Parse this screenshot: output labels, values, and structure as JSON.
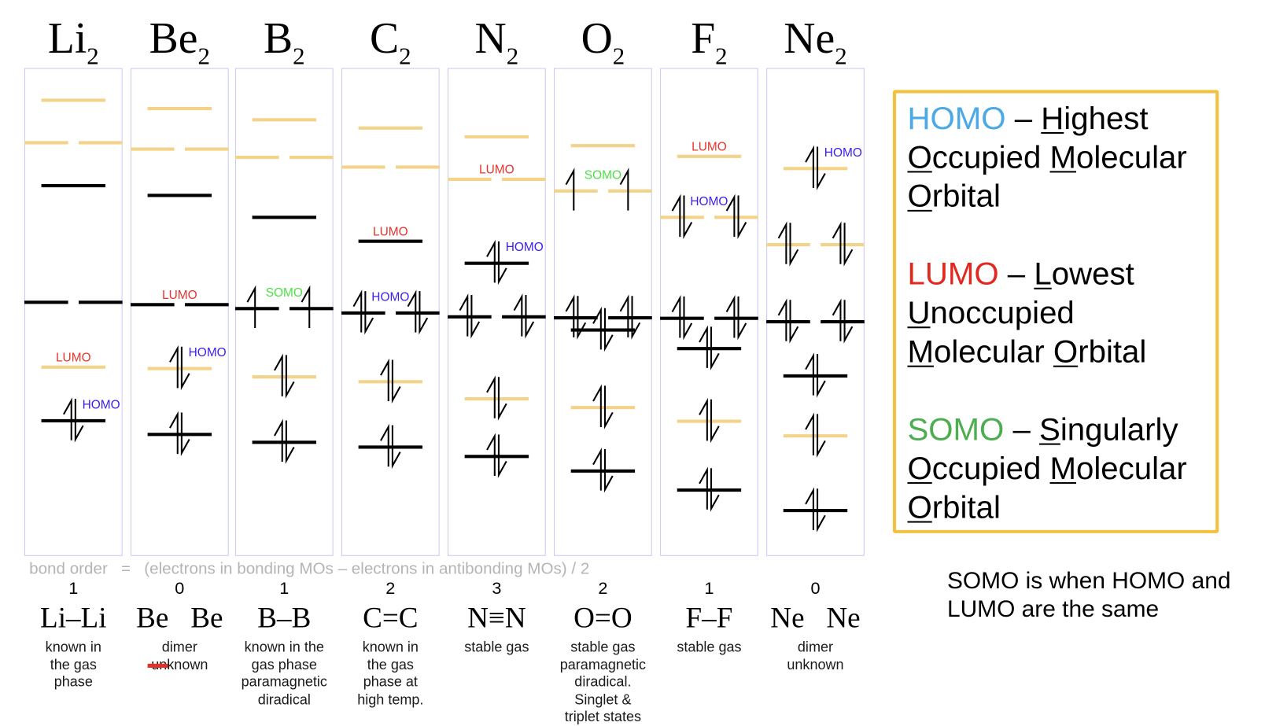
{
  "colors": {
    "bonding_line": "#000000",
    "antibonding_line": "#f3d38a",
    "homo_label": "#3a1ef2",
    "lumo_label": "#e8352b",
    "somo_label": "#4fe046",
    "box_border": "#c9c9f7",
    "legend_border": "#f2c13f",
    "formula_text": "#b4b4b4",
    "strike": "#e0322a"
  },
  "molecules": [
    {
      "symbol": "Li",
      "subscript": "2",
      "orbitals": [
        {
          "kind": "antibonding",
          "degeneracy": 1,
          "electrons": [
            0
          ],
          "relative_energy": 93.4,
          "label": null
        },
        {
          "kind": "antibonding",
          "degeneracy": 2,
          "electrons": [
            0,
            0
          ],
          "relative_energy": 84.7,
          "label": null
        },
        {
          "kind": "bonding",
          "degeneracy": 1,
          "electrons": [
            0
          ],
          "relative_energy": 75.9,
          "label": null
        },
        {
          "kind": "bonding",
          "degeneracy": 2,
          "electrons": [
            0,
            0
          ],
          "relative_energy": 52.0,
          "label": null
        },
        {
          "kind": "antibonding",
          "degeneracy": 1,
          "electrons": [
            0
          ],
          "relative_energy": 38.7,
          "label": "LUMO"
        },
        {
          "kind": "bonding",
          "degeneracy": 1,
          "electrons": [
            2
          ],
          "relative_energy": 27.7,
          "label": "HOMO"
        }
      ],
      "bond_order": "1",
      "structure": "Li–Li",
      "description": [
        {
          "text": "known in"
        },
        {
          "text": "the gas"
        },
        {
          "text": "phase"
        }
      ]
    },
    {
      "symbol": "Be",
      "subscript": "2",
      "orbitals": [
        {
          "kind": "antibonding",
          "degeneracy": 1,
          "electrons": [
            0
          ],
          "relative_energy": 91.7,
          "label": null
        },
        {
          "kind": "antibonding",
          "degeneracy": 2,
          "electrons": [
            0,
            0
          ],
          "relative_energy": 83.4,
          "label": null
        },
        {
          "kind": "bonding",
          "degeneracy": 1,
          "electrons": [
            0
          ],
          "relative_energy": 73.9,
          "label": null
        },
        {
          "kind": "bonding",
          "degeneracy": 2,
          "electrons": [
            0,
            0
          ],
          "relative_energy": 51.5,
          "label": "LUMO"
        },
        {
          "kind": "antibonding",
          "degeneracy": 1,
          "electrons": [
            2
          ],
          "relative_energy": 38.4,
          "label": "HOMO"
        },
        {
          "kind": "bonding",
          "degeneracy": 1,
          "electrons": [
            2
          ],
          "relative_energy": 24.9,
          "label": null
        }
      ],
      "bond_order": "0",
      "structure": "Be   Be",
      "description": [
        {
          "text": "dimer"
        },
        {
          "struck": "un",
          "text": "known"
        }
      ]
    },
    {
      "symbol": "B",
      "subscript": "2",
      "orbitals": [
        {
          "kind": "antibonding",
          "degeneracy": 1,
          "electrons": [
            0
          ],
          "relative_energy": 89.4,
          "label": null
        },
        {
          "kind": "antibonding",
          "degeneracy": 2,
          "electrons": [
            0,
            0
          ],
          "relative_energy": 81.7,
          "label": null
        },
        {
          "kind": "bonding",
          "degeneracy": 1,
          "electrons": [
            0
          ],
          "relative_energy": 69.4,
          "label": null
        },
        {
          "kind": "bonding",
          "degeneracy": 2,
          "electrons": [
            1,
            1
          ],
          "relative_energy": 50.7,
          "label": "SOMO"
        },
        {
          "kind": "antibonding",
          "degeneracy": 1,
          "electrons": [
            2
          ],
          "relative_energy": 36.7,
          "label": null
        },
        {
          "kind": "bonding",
          "degeneracy": 1,
          "electrons": [
            2
          ],
          "relative_energy": 23.3,
          "label": null
        }
      ],
      "bond_order": "1",
      "structure": "B–B",
      "description": [
        {
          "text": "known in the"
        },
        {
          "text": "gas phase"
        },
        {
          "text": "paramagnetic"
        },
        {
          "text": "diradical"
        }
      ]
    },
    {
      "symbol": "C",
      "subscript": "2",
      "orbitals": [
        {
          "kind": "antibonding",
          "degeneracy": 1,
          "electrons": [
            0
          ],
          "relative_energy": 87.7,
          "label": null
        },
        {
          "kind": "antibonding",
          "degeneracy": 2,
          "electrons": [
            0,
            0
          ],
          "relative_energy": 79.7,
          "label": null
        },
        {
          "kind": "bonding",
          "degeneracy": 1,
          "electrons": [
            0
          ],
          "relative_energy": 64.5,
          "label": "LUMO"
        },
        {
          "kind": "bonding",
          "degeneracy": 2,
          "electrons": [
            2,
            2
          ],
          "relative_energy": 49.8,
          "label": "HOMO"
        },
        {
          "kind": "antibonding",
          "degeneracy": 1,
          "electrons": [
            2
          ],
          "relative_energy": 35.7,
          "label": null
        },
        {
          "kind": "bonding",
          "degeneracy": 1,
          "electrons": [
            2
          ],
          "relative_energy": 22.3,
          "label": null
        }
      ],
      "bond_order": "2",
      "structure": "C=C",
      "description": [
        {
          "text": "known in"
        },
        {
          "text": "the gas"
        },
        {
          "text": "phase at"
        },
        {
          "text": "high temp."
        }
      ]
    },
    {
      "symbol": "N",
      "subscript": "2",
      "orbitals": [
        {
          "kind": "antibonding",
          "degeneracy": 1,
          "electrons": [
            0
          ],
          "relative_energy": 85.9,
          "label": null
        },
        {
          "kind": "antibonding",
          "degeneracy": 2,
          "electrons": [
            0,
            0
          ],
          "relative_energy": 77.2,
          "label": "LUMO"
        },
        {
          "kind": "bonding",
          "degeneracy": 1,
          "electrons": [
            2
          ],
          "relative_energy": 60.0,
          "label": "HOMO"
        },
        {
          "kind": "bonding",
          "degeneracy": 2,
          "electrons": [
            2,
            2
          ],
          "relative_energy": 49.0,
          "label": null
        },
        {
          "kind": "antibonding",
          "degeneracy": 1,
          "electrons": [
            2
          ],
          "relative_energy": 32.2,
          "label": null
        },
        {
          "kind": "bonding",
          "degeneracy": 1,
          "electrons": [
            2
          ],
          "relative_energy": 20.4,
          "label": null
        }
      ],
      "bond_order": "3",
      "structure": "N≡N",
      "description": [
        {
          "text": "stable gas"
        }
      ]
    },
    {
      "symbol": "O",
      "subscript": "2",
      "orbitals": [
        {
          "kind": "antibonding",
          "degeneracy": 1,
          "electrons": [
            0
          ],
          "relative_energy": 84.1,
          "label": null
        },
        {
          "kind": "antibonding",
          "degeneracy": 2,
          "electrons": [
            1,
            1
          ],
          "relative_energy": 74.8,
          "label": "SOMO"
        },
        {
          "kind": "bonding",
          "degeneracy": 2,
          "electrons": [
            2,
            2
          ],
          "relative_energy": 48.8,
          "label": null
        },
        {
          "kind": "bonding",
          "degeneracy": 1,
          "electrons": [
            2
          ],
          "relative_energy": 46.3,
          "label": null
        },
        {
          "kind": "antibonding",
          "degeneracy": 1,
          "electrons": [
            2
          ],
          "relative_energy": 30.4,
          "label": null
        },
        {
          "kind": "bonding",
          "degeneracy": 1,
          "electrons": [
            2
          ],
          "relative_energy": 17.4,
          "label": null
        }
      ],
      "bond_order": "2",
      "structure": "O=O",
      "description": [
        {
          "text": "stable gas"
        },
        {
          "text": "paramagnetic"
        },
        {
          "text": "diradical."
        },
        {
          "text": "Singlet &"
        },
        {
          "text": "triplet states"
        }
      ]
    },
    {
      "symbol": "F",
      "subscript": "2",
      "orbitals": [
        {
          "kind": "antibonding",
          "degeneracy": 1,
          "electrons": [
            0
          ],
          "relative_energy": 81.9,
          "label": "LUMO"
        },
        {
          "kind": "antibonding",
          "degeneracy": 2,
          "electrons": [
            2,
            2
          ],
          "relative_energy": 69.4,
          "label": "HOMO"
        },
        {
          "kind": "bonding",
          "degeneracy": 2,
          "electrons": [
            2,
            2
          ],
          "relative_energy": 48.7,
          "label": null
        },
        {
          "kind": "bonding",
          "degeneracy": 1,
          "electrons": [
            2
          ],
          "relative_energy": 42.5,
          "label": null
        },
        {
          "kind": "antibonding",
          "degeneracy": 1,
          "electrons": [
            2
          ],
          "relative_energy": 27.6,
          "label": null
        },
        {
          "kind": "bonding",
          "degeneracy": 1,
          "electrons": [
            2
          ],
          "relative_energy": 13.5,
          "label": null
        }
      ],
      "bond_order": "1",
      "structure": "F–F",
      "description": [
        {
          "text": "stable gas"
        }
      ]
    },
    {
      "symbol": "Ne",
      "subscript": "2",
      "orbitals": [
        {
          "kind": "antibonding",
          "degeneracy": 1,
          "electrons": [
            2
          ],
          "relative_energy": 79.4,
          "label": "HOMO"
        },
        {
          "kind": "antibonding",
          "degeneracy": 2,
          "electrons": [
            2,
            2
          ],
          "relative_energy": 63.8,
          "label": null
        },
        {
          "kind": "bonding",
          "degeneracy": 2,
          "electrons": [
            2,
            2
          ],
          "relative_energy": 48.0,
          "label": null
        },
        {
          "kind": "bonding",
          "degeneracy": 1,
          "electrons": [
            2
          ],
          "relative_energy": 36.9,
          "label": null
        },
        {
          "kind": "antibonding",
          "degeneracy": 1,
          "electrons": [
            2
          ],
          "relative_energy": 24.6,
          "label": null
        },
        {
          "kind": "bonding",
          "degeneracy": 1,
          "electrons": [
            2
          ],
          "relative_energy": 9.3,
          "label": null
        }
      ],
      "bond_order": "0",
      "structure": "Ne   Ne",
      "description": [
        {
          "text": "dimer"
        },
        {
          "text": "unknown"
        }
      ]
    }
  ],
  "bond_order_formula": "bond order   =   (electrons in bonding MOs – electrons in antibonding MOs) / 2",
  "legend": {
    "entries": [
      {
        "acronym": "HOMO",
        "color": "#4aa9e6",
        "separator": "–",
        "lines": [
          [
            {
              "initial": "H",
              "rest": "ighest"
            }
          ],
          [
            {
              "initial": "O",
              "rest": "ccupied"
            },
            {
              "initial": "M",
              "rest": "olecular"
            }
          ],
          [
            {
              "initial": "O",
              "rest": "rbital"
            }
          ]
        ]
      },
      {
        "acronym": "LUMO",
        "color": "#e2271f",
        "separator": "–",
        "lines": [
          [
            {
              "initial": "L",
              "rest": "owest"
            }
          ],
          [
            {
              "initial": "U",
              "rest": "noccupied"
            }
          ],
          [
            {
              "initial": "M",
              "rest": "olecular"
            },
            {
              "initial": "O",
              "rest": "rbital"
            }
          ]
        ]
      },
      {
        "acronym": "SOMO",
        "color": "#4cae4f",
        "separator": "–",
        "lines": [
          [
            {
              "initial": "S",
              "rest": "ingularly"
            }
          ],
          [
            {
              "initial": "O",
              "rest": "ccupied"
            },
            {
              "initial": "M",
              "rest": "olecular"
            }
          ],
          [
            {
              "initial": "O",
              "rest": "rbital"
            }
          ]
        ]
      }
    ]
  },
  "note": {
    "lines": [
      "SOMO is when HOMO and",
      "LUMO are the same"
    ]
  }
}
